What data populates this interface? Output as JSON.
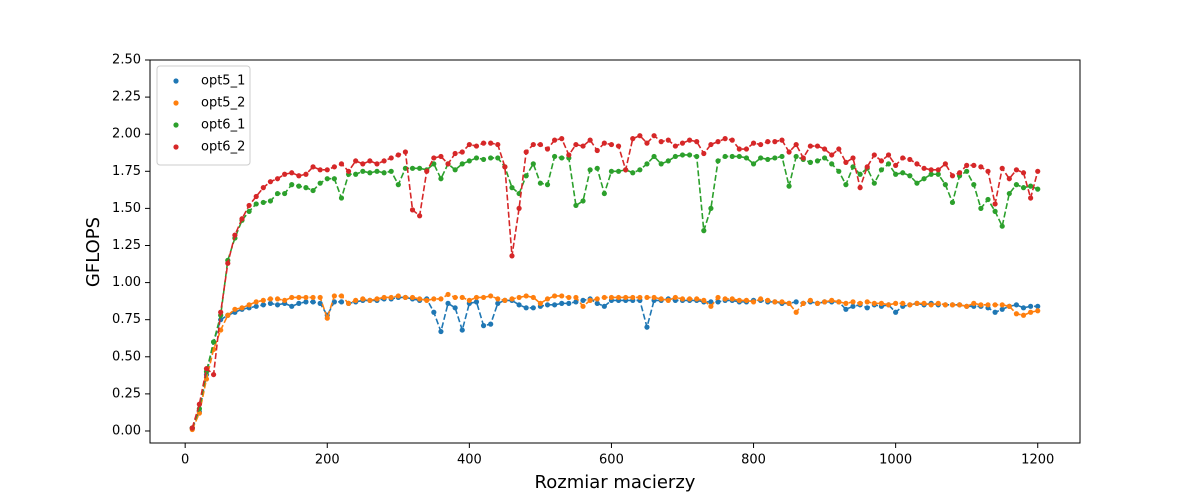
{
  "chart_data": {
    "type": "line",
    "line_style": "dashed",
    "marker": "circle",
    "xlabel": "Rozmiar macierzy",
    "ylabel": "GFLOPS",
    "x": [
      10,
      20,
      30,
      40,
      50,
      60,
      70,
      80,
      90,
      100,
      110,
      120,
      130,
      140,
      150,
      160,
      170,
      180,
      190,
      200,
      210,
      220,
      230,
      240,
      250,
      260,
      270,
      280,
      290,
      300,
      310,
      320,
      330,
      340,
      350,
      360,
      370,
      380,
      390,
      400,
      410,
      420,
      430,
      440,
      450,
      460,
      470,
      480,
      490,
      500,
      510,
      520,
      530,
      540,
      550,
      560,
      570,
      580,
      590,
      600,
      610,
      620,
      630,
      640,
      650,
      660,
      670,
      680,
      690,
      700,
      710,
      720,
      730,
      740,
      750,
      760,
      770,
      780,
      790,
      800,
      810,
      820,
      830,
      840,
      850,
      860,
      870,
      880,
      890,
      900,
      910,
      920,
      930,
      940,
      950,
      960,
      970,
      980,
      990,
      1000,
      1010,
      1020,
      1030,
      1040,
      1050,
      1060,
      1070,
      1080,
      1090,
      1100,
      1110,
      1120,
      1130,
      1140,
      1150,
      1160,
      1170,
      1180,
      1190,
      1200
    ],
    "series": [
      {
        "name": "opt5_1",
        "color": "#1f77b4",
        "values": [
          0.02,
          0.13,
          0.38,
          0.6,
          0.75,
          0.78,
          0.8,
          0.82,
          0.83,
          0.84,
          0.85,
          0.86,
          0.85,
          0.86,
          0.84,
          0.86,
          0.87,
          0.87,
          0.86,
          0.78,
          0.87,
          0.87,
          0.86,
          0.87,
          0.88,
          0.88,
          0.88,
          0.89,
          0.89,
          0.9,
          0.9,
          0.89,
          0.88,
          0.89,
          0.8,
          0.67,
          0.86,
          0.83,
          0.68,
          0.86,
          0.87,
          0.71,
          0.72,
          0.86,
          0.88,
          0.88,
          0.85,
          0.83,
          0.83,
          0.84,
          0.85,
          0.85,
          0.86,
          0.86,
          0.87,
          0.88,
          0.89,
          0.86,
          0.84,
          0.88,
          0.88,
          0.88,
          0.88,
          0.88,
          0.7,
          0.88,
          0.88,
          0.89,
          0.88,
          0.88,
          0.88,
          0.88,
          0.87,
          0.87,
          0.87,
          0.88,
          0.88,
          0.87,
          0.87,
          0.88,
          0.88,
          0.87,
          0.87,
          0.86,
          0.86,
          0.87,
          0.86,
          0.87,
          0.86,
          0.87,
          0.87,
          0.87,
          0.82,
          0.84,
          0.85,
          0.83,
          0.85,
          0.84,
          0.85,
          0.8,
          0.84,
          0.85,
          0.86,
          0.85,
          0.86,
          0.85,
          0.85,
          0.85,
          0.85,
          0.84,
          0.84,
          0.84,
          0.83,
          0.8,
          0.82,
          0.84,
          0.85,
          0.83,
          0.84,
          0.84
        ]
      },
      {
        "name": "opt5_2",
        "color": "#ff7f0e",
        "values": [
          0.01,
          0.12,
          0.35,
          0.55,
          0.68,
          0.78,
          0.82,
          0.83,
          0.85,
          0.87,
          0.88,
          0.89,
          0.89,
          0.88,
          0.9,
          0.9,
          0.9,
          0.9,
          0.9,
          0.76,
          0.91,
          0.91,
          0.86,
          0.88,
          0.89,
          0.88,
          0.89,
          0.9,
          0.9,
          0.91,
          0.9,
          0.9,
          0.89,
          0.88,
          0.89,
          0.89,
          0.92,
          0.9,
          0.9,
          0.88,
          0.9,
          0.9,
          0.91,
          0.89,
          0.88,
          0.89,
          0.9,
          0.91,
          0.9,
          0.86,
          0.89,
          0.91,
          0.91,
          0.9,
          0.9,
          0.84,
          0.88,
          0.89,
          0.9,
          0.9,
          0.9,
          0.9,
          0.9,
          0.9,
          0.9,
          0.9,
          0.89,
          0.88,
          0.9,
          0.89,
          0.89,
          0.89,
          0.88,
          0.84,
          0.9,
          0.89,
          0.89,
          0.88,
          0.88,
          0.87,
          0.89,
          0.88,
          0.87,
          0.87,
          0.86,
          0.8,
          0.86,
          0.88,
          0.86,
          0.87,
          0.88,
          0.87,
          0.86,
          0.87,
          0.86,
          0.87,
          0.86,
          0.86,
          0.85,
          0.86,
          0.86,
          0.85,
          0.86,
          0.86,
          0.85,
          0.86,
          0.85,
          0.85,
          0.85,
          0.84,
          0.86,
          0.85,
          0.85,
          0.85,
          0.85,
          0.84,
          0.79,
          0.78,
          0.8,
          0.81
        ]
      },
      {
        "name": "opt6_1",
        "color": "#2ca02c",
        "values": [
          0.02,
          0.15,
          0.4,
          0.6,
          0.78,
          1.15,
          1.3,
          1.42,
          1.48,
          1.53,
          1.54,
          1.55,
          1.6,
          1.6,
          1.66,
          1.65,
          1.64,
          1.62,
          1.67,
          1.7,
          1.7,
          1.57,
          1.73,
          1.73,
          1.75,
          1.74,
          1.75,
          1.74,
          1.75,
          1.66,
          1.77,
          1.77,
          1.77,
          1.76,
          1.8,
          1.7,
          1.8,
          1.76,
          1.8,
          1.82,
          1.84,
          1.83,
          1.84,
          1.84,
          1.78,
          1.64,
          1.6,
          1.72,
          1.8,
          1.67,
          1.66,
          1.85,
          1.84,
          1.84,
          1.52,
          1.55,
          1.76,
          1.77,
          1.6,
          1.75,
          1.75,
          1.76,
          1.74,
          1.76,
          1.8,
          1.85,
          1.8,
          1.82,
          1.85,
          1.86,
          1.86,
          1.85,
          1.35,
          1.5,
          1.82,
          1.85,
          1.85,
          1.85,
          1.84,
          1.8,
          1.84,
          1.83,
          1.84,
          1.85,
          1.65,
          1.85,
          1.83,
          1.81,
          1.82,
          1.84,
          1.8,
          1.75,
          1.66,
          1.78,
          1.73,
          1.77,
          1.67,
          1.76,
          1.8,
          1.73,
          1.74,
          1.72,
          1.67,
          1.7,
          1.73,
          1.73,
          1.66,
          1.54,
          1.72,
          1.75,
          1.66,
          1.5,
          1.56,
          1.48,
          1.38,
          1.6,
          1.66,
          1.64,
          1.65,
          1.63
        ]
      },
      {
        "name": "opt6_2",
        "color": "#d62728",
        "values": [
          0.02,
          0.18,
          0.42,
          0.38,
          0.8,
          1.13,
          1.32,
          1.43,
          1.52,
          1.58,
          1.64,
          1.68,
          1.7,
          1.73,
          1.74,
          1.72,
          1.73,
          1.78,
          1.76,
          1.76,
          1.78,
          1.8,
          1.75,
          1.82,
          1.8,
          1.82,
          1.8,
          1.82,
          1.84,
          1.86,
          1.88,
          1.49,
          1.45,
          1.75,
          1.84,
          1.85,
          1.8,
          1.87,
          1.88,
          1.93,
          1.92,
          1.94,
          1.94,
          1.93,
          1.78,
          1.18,
          1.5,
          1.88,
          1.93,
          1.93,
          1.9,
          1.96,
          1.97,
          1.86,
          1.93,
          1.92,
          1.96,
          1.89,
          1.94,
          1.93,
          1.92,
          1.76,
          1.97,
          1.99,
          1.94,
          1.99,
          1.95,
          1.96,
          1.92,
          1.94,
          1.96,
          1.95,
          1.87,
          1.93,
          1.95,
          1.97,
          1.96,
          1.9,
          1.9,
          1.94,
          1.93,
          1.95,
          1.95,
          1.96,
          1.88,
          1.93,
          1.84,
          1.92,
          1.92,
          1.9,
          1.86,
          1.9,
          1.81,
          1.84,
          1.64,
          1.78,
          1.86,
          1.82,
          1.86,
          1.79,
          1.84,
          1.83,
          1.8,
          1.77,
          1.76,
          1.76,
          1.8,
          1.72,
          1.74,
          1.79,
          1.79,
          1.78,
          1.75,
          1.53,
          1.77,
          1.7,
          1.76,
          1.74,
          1.57,
          1.75
        ]
      }
    ],
    "xlim": [
      -49.5,
      1259.5
    ],
    "xticks": [
      0,
      200,
      400,
      600,
      800,
      1000,
      1200
    ],
    "ylim": [
      -0.081,
      2.5
    ],
    "yticks": [
      {
        "value": 0,
        "label": "0.00"
      },
      {
        "value": 0.25,
        "label": "0.25"
      },
      {
        "value": 0.5,
        "label": "0.50"
      },
      {
        "value": 0.75,
        "label": "0.75"
      },
      {
        "value": 1,
        "label": "1.00"
      },
      {
        "value": 1.25,
        "label": "1.25"
      },
      {
        "value": 1.5,
        "label": "1.50"
      },
      {
        "value": 1.75,
        "label": "1.75"
      },
      {
        "value": 2,
        "label": "2.00"
      },
      {
        "value": 2.25,
        "label": "2.25"
      },
      {
        "value": 2.5,
        "label": "2.50"
      }
    ],
    "grid": false,
    "legend": "upper left"
  }
}
